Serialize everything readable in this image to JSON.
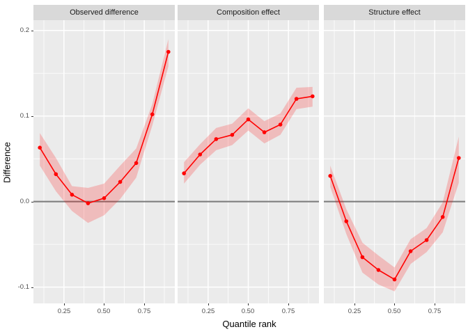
{
  "figure": {
    "background": "#FFFFFF",
    "panel_background": "#EBEBEB",
    "strip_background": "#D9D9D9",
    "grid_color": "#FFFFFF",
    "axis_text_color": "#4D4D4D",
    "tick_color": "#333333",
    "zero_line_color": "#7F7F7F",
    "accent_color": "#FF0000"
  },
  "axes": {
    "y_tick_labels": [
      "0.2",
      "0.1",
      "0.0",
      "-0.1"
    ],
    "x_tick_labels": [
      "0.25",
      "0.50",
      "0.75"
    ]
  },
  "chart_data": {
    "type": "line",
    "title": "",
    "xlabel": "Quantile rank",
    "ylabel": "Difference",
    "legend": "none",
    "grid": true,
    "reference_line_y": 0,
    "line_color": "#FF0000",
    "ribbon_alpha": 0.2,
    "x": [
      0.1,
      0.2,
      0.3,
      0.4,
      0.5,
      0.6,
      0.7,
      0.8,
      0.9
    ],
    "x_ticks": [
      0.25,
      0.5,
      0.75
    ],
    "x_minor_ticks": [
      0.125,
      0.375,
      0.625,
      0.875
    ],
    "y_ticks": [
      0.2,
      0.1,
      0.0,
      -0.1
    ],
    "y_minor_ticks": [
      0.15,
      0.05,
      -0.05
    ],
    "xlim": [
      0.06,
      0.94
    ],
    "ylim": [
      -0.119,
      0.212
    ],
    "facets": [
      {
        "title": "Observed difference",
        "y": [
          0.063,
          0.032,
          0.008,
          -0.002,
          0.004,
          0.023,
          0.045,
          0.102,
          0.175
        ],
        "ribbon_lower": [
          0.042,
          0.012,
          -0.011,
          -0.025,
          -0.016,
          0.003,
          0.028,
          0.089,
          0.158
        ],
        "ribbon_upper": [
          0.08,
          0.051,
          0.018,
          0.016,
          0.021,
          0.042,
          0.062,
          0.114,
          0.19
        ]
      },
      {
        "title": "Composition effect",
        "y": [
          0.033,
          0.055,
          0.073,
          0.078,
          0.096,
          0.081,
          0.09,
          0.12,
          0.123
        ],
        "ribbon_lower": [
          0.021,
          0.043,
          0.06,
          0.066,
          0.083,
          0.068,
          0.078,
          0.108,
          0.111
        ],
        "ribbon_upper": [
          0.046,
          0.067,
          0.086,
          0.091,
          0.109,
          0.094,
          0.103,
          0.133,
          0.134
        ]
      },
      {
        "title": "Structure effect",
        "y": [
          0.03,
          -0.023,
          -0.065,
          -0.08,
          -0.091,
          -0.058,
          -0.045,
          -0.018,
          0.051
        ],
        "ribbon_lower": [
          0.017,
          -0.038,
          -0.083,
          -0.097,
          -0.105,
          -0.073,
          -0.059,
          -0.036,
          0.022
        ],
        "ribbon_upper": [
          0.042,
          -0.009,
          -0.048,
          -0.063,
          -0.077,
          -0.044,
          -0.031,
          -0.001,
          0.076
        ]
      }
    ]
  }
}
